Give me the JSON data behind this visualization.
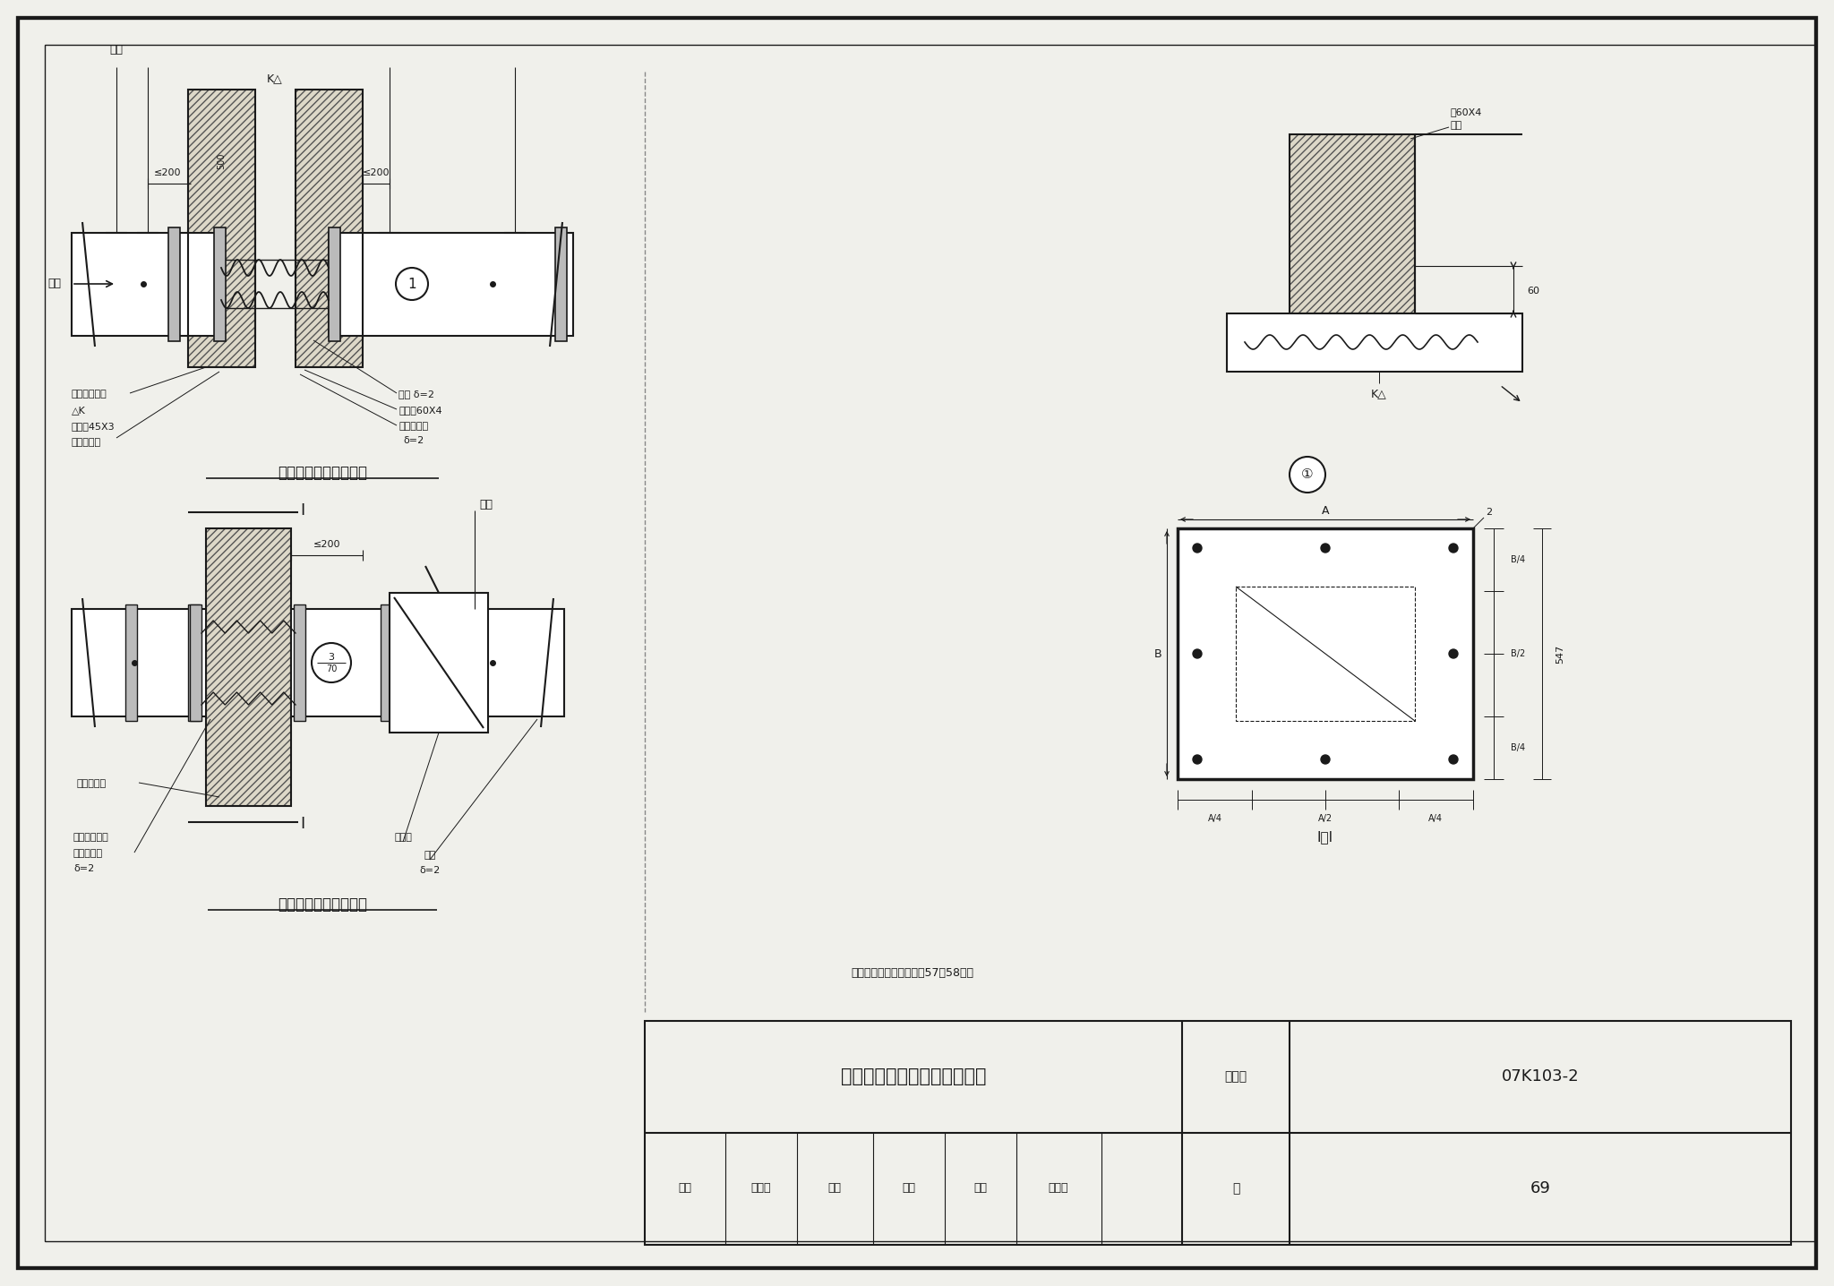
{
  "title": "风管穿越变形缝、防火墙做法",
  "figure_num": "07K103-2",
  "page": "69",
  "label_top": "水平风管穿变形缝做法",
  "label_bottom": "水平风管穿防火墙做法",
  "note": "注：图中防火阀安装见第57、58页。",
  "bg_color": "#f0f0eb",
  "line_color": "#1a1a1a"
}
